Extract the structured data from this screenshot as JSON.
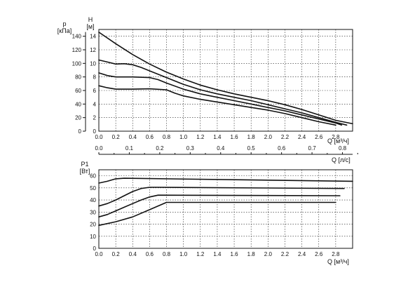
{
  "chart_data": [
    {
      "type": "line",
      "xlabel": "Q [м³/ч]",
      "ylabel": "H [м]",
      "secondary_ylabel": "p [кПа]",
      "xlim": [
        0,
        3.0
      ],
      "ylim": [
        0,
        15
      ],
      "x_ticks": [
        "0.0",
        "0.2",
        "0.4",
        "0.6",
        "0.8",
        "1.0",
        "1.2",
        "1.4",
        "1.6",
        "1.8",
        "2.0",
        "2.2",
        "2.4",
        "2.6",
        "2.8"
      ],
      "y_ticks": [
        "0",
        "2",
        "4",
        "6",
        "8",
        "10",
        "12",
        "14"
      ],
      "secondary_y_ticks": [
        "0",
        "20",
        "40",
        "60",
        "80",
        "100",
        "120",
        "140"
      ],
      "grid": true,
      "series": [
        {
          "x": [
            0.0,
            0.2,
            0.4,
            0.6,
            0.8,
            1.0,
            1.2,
            1.4,
            1.6,
            1.8,
            2.0,
            2.2,
            2.4,
            2.6,
            2.8,
            3.0
          ],
          "y": [
            14.6,
            12.9,
            11.3,
            9.9,
            8.7,
            7.7,
            6.8,
            6.1,
            5.5,
            5.0,
            4.5,
            3.9,
            3.2,
            2.4,
            1.6,
            1.1
          ]
        },
        {
          "x": [
            0.0,
            0.1,
            0.2,
            0.3,
            0.4,
            0.5,
            0.6,
            0.8,
            1.0,
            1.2,
            1.4,
            1.6,
            1.8,
            2.0,
            2.2,
            2.4,
            2.6,
            2.8,
            2.93
          ],
          "y": [
            10.5,
            10.2,
            9.9,
            9.95,
            9.8,
            9.4,
            8.9,
            7.9,
            6.9,
            6.1,
            5.5,
            5.0,
            4.5,
            3.9,
            3.3,
            2.7,
            2.0,
            1.3,
            0.9
          ]
        },
        {
          "x": [
            0.0,
            0.1,
            0.2,
            0.4,
            0.6,
            0.7,
            0.8,
            1.0,
            1.2,
            1.4,
            1.6,
            1.8,
            2.0,
            2.2,
            2.4,
            2.6,
            2.8,
            2.87
          ],
          "y": [
            8.6,
            8.2,
            8.0,
            8.0,
            7.9,
            7.6,
            7.1,
            6.2,
            5.5,
            5.0,
            4.5,
            4.0,
            3.5,
            3.0,
            2.4,
            1.8,
            1.2,
            0.9
          ]
        },
        {
          "x": [
            0.0,
            0.1,
            0.2,
            0.4,
            0.6,
            0.8,
            0.9,
            1.0,
            1.2,
            1.4,
            1.6,
            1.8,
            2.0,
            2.2,
            2.4,
            2.6,
            2.8
          ],
          "y": [
            6.7,
            6.4,
            6.2,
            6.2,
            6.25,
            6.1,
            5.6,
            5.2,
            4.7,
            4.3,
            3.9,
            3.5,
            3.1,
            2.6,
            2.0,
            1.4,
            0.9
          ]
        }
      ]
    },
    {
      "type": "line",
      "xlabel": "Q [м³/ч]",
      "ylabel": "P1 [Вт]",
      "top_xlabel": "Q [л/с]",
      "xlim": [
        0,
        3.0
      ],
      "ylim": [
        0,
        65
      ],
      "x_ticks": [
        "0.0",
        "0.2",
        "0.4",
        "0.6",
        "0.8",
        "1.0",
        "1.2",
        "1.4",
        "1.6",
        "1.8",
        "2.0",
        "2.2",
        "2.4",
        "2.6",
        "2.8"
      ],
      "top_x_ticks": [
        "0.0",
        "0.1",
        "0.2",
        "0.3",
        "0.4",
        "0.5",
        "0.6",
        "0.7",
        "0.8"
      ],
      "y_ticks": [
        "0",
        "10",
        "20",
        "30",
        "40",
        "50",
        "60"
      ],
      "grid": true,
      "series": [
        {
          "x": [
            0.0,
            0.1,
            0.2,
            0.3,
            3.0
          ],
          "y": [
            54,
            55.5,
            57.5,
            58,
            55.5
          ]
        },
        {
          "x": [
            0.0,
            0.1,
            0.2,
            0.3,
            0.4,
            0.5,
            0.6,
            0.7,
            2.9
          ],
          "y": [
            35,
            37,
            40,
            43.5,
            47,
            49.5,
            50.5,
            50.5,
            49.5
          ]
        },
        {
          "x": [
            0.0,
            0.1,
            0.2,
            0.3,
            0.4,
            0.5,
            0.6,
            0.7,
            2.85
          ],
          "y": [
            26,
            28,
            31,
            34,
            37,
            40,
            42.5,
            44,
            43.5
          ]
        },
        {
          "x": [
            0.0,
            0.2,
            0.4,
            0.6,
            0.8,
            2.8
          ],
          "y": [
            19,
            22,
            26,
            32,
            38,
            38
          ]
        }
      ]
    }
  ]
}
